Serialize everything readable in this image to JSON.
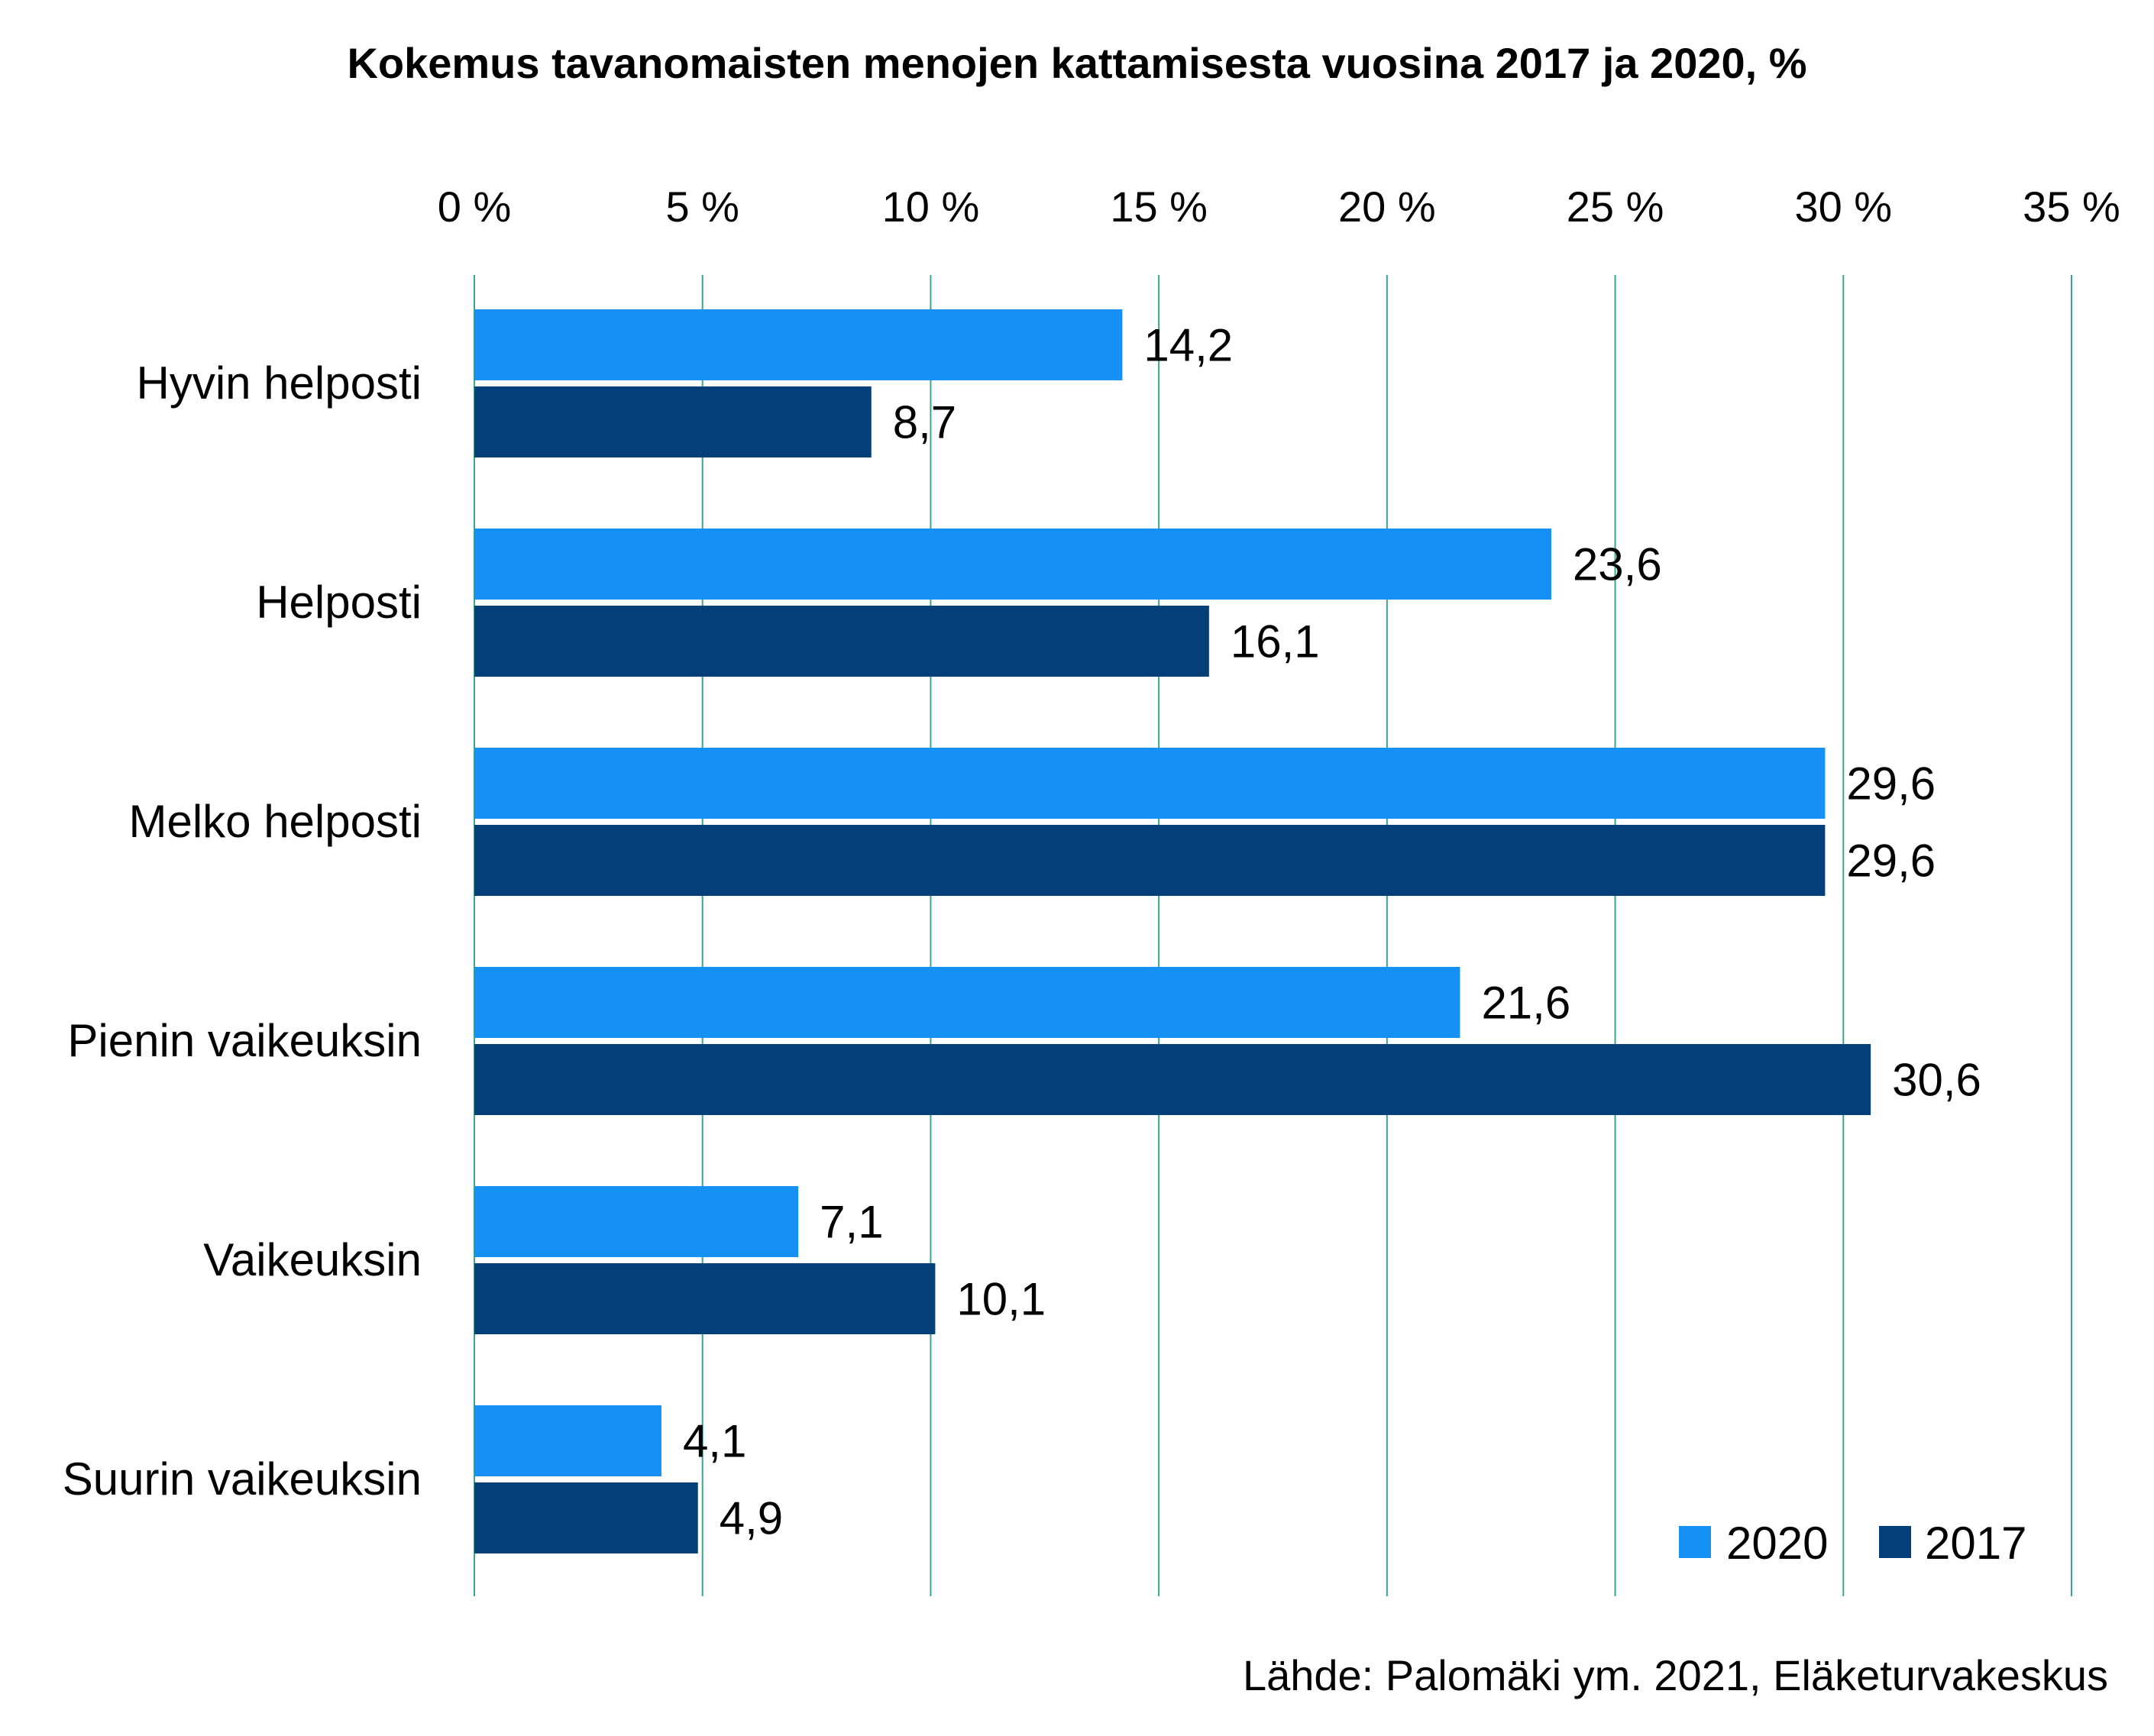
{
  "chart_data": {
    "type": "bar",
    "orientation": "horizontal",
    "title": "Kokemus tavanomaisten menojen kattamisesta vuosina 2017 ja 2020, %",
    "categories": [
      "Hyvin helposti",
      "Helposti",
      "Melko helposti",
      "Pienin vaikeuksin",
      "Vaikeuksin",
      "Suurin vaikeuksin"
    ],
    "series": [
      {
        "name": "2020",
        "color": "#1590f5",
        "values": [
          14.2,
          23.6,
          29.6,
          21.6,
          7.1,
          4.1
        ],
        "labels": [
          "14,2",
          "23,6",
          "29,6",
          "21,6",
          "7,1",
          "4,1"
        ]
      },
      {
        "name": "2017",
        "color": "#043f7a",
        "values": [
          8.7,
          16.1,
          29.6,
          30.6,
          10.1,
          4.9
        ],
        "labels": [
          "8,7",
          "16,1",
          "29,6",
          "30,6",
          "10,1",
          "4,9"
        ]
      }
    ],
    "xlim": [
      0,
      35
    ],
    "xticks": [
      0,
      5,
      10,
      15,
      20,
      25,
      30,
      35
    ],
    "xtick_labels": [
      "0 %",
      "5 %",
      "10 %",
      "15 %",
      "20 %",
      "25 %",
      "30 %",
      "35 %"
    ],
    "x_axis_position": "top",
    "grid": true,
    "grid_color": "#3aa68e",
    "legend_position": "bottom-right",
    "source": "Lähde: Palomäki ym. 2021, Eläketurvakeskus"
  }
}
